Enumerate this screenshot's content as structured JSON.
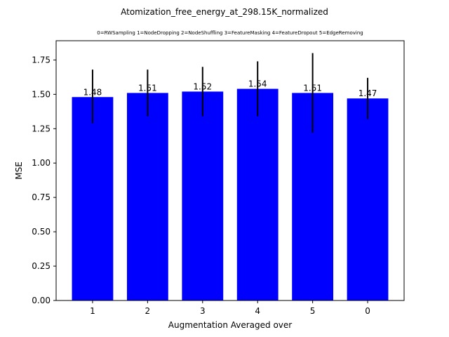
{
  "chart_data": {
    "type": "bar",
    "title": "Atomization_free_energy_at_298.15K_normalized",
    "subtitle": "0=RWSampling 1=NodeDropping 2=NodeShuffling 3=FeatureMasking 4=FeatureDropout 5=EdgeRemoving",
    "xlabel": "Augmentation Averaged over",
    "ylabel": "MSE",
    "categories": [
      "1",
      "2",
      "3",
      "4",
      "5",
      "0"
    ],
    "values": [
      1.48,
      1.51,
      1.52,
      1.54,
      1.51,
      1.47
    ],
    "value_labels": [
      "1.48",
      "1.51",
      "1.52",
      "1.54",
      "1.51",
      "1.47"
    ],
    "error_low": [
      1.29,
      1.34,
      1.34,
      1.34,
      1.22,
      1.32
    ],
    "error_high": [
      1.68,
      1.68,
      1.7,
      1.74,
      1.8,
      1.62
    ],
    "ylim": [
      0,
      1.89
    ],
    "yticks": [
      0.0,
      0.25,
      0.5,
      0.75,
      1.0,
      1.25,
      1.5,
      1.75
    ],
    "ytick_labels": [
      "0.00",
      "0.25",
      "0.50",
      "0.75",
      "1.00",
      "1.25",
      "1.50",
      "1.75"
    ],
    "bar_color": "#0000ff",
    "error_color": "#000000",
    "grid": false
  }
}
